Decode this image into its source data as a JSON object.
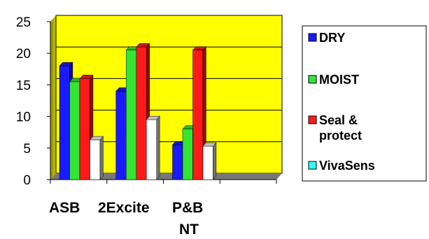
{
  "chart_data": {
    "type": "bar",
    "categories": [
      "ASB",
      "2Excite",
      "P&B NT",
      ""
    ],
    "category_lines": [
      [
        "ASB"
      ],
      [
        "2Excite"
      ],
      [
        "P&B",
        "NT"
      ],
      []
    ],
    "series": [
      {
        "name": "DRY",
        "legend_lines": [
          "DRY"
        ],
        "color": "#1a1aff",
        "values": [
          18,
          14,
          5.5,
          null
        ]
      },
      {
        "name": "MOIST",
        "legend_lines": [
          "MOIST"
        ],
        "color": "#33e633",
        "values": [
          15.5,
          20.5,
          8,
          null
        ]
      },
      {
        "name": "Seal & protect",
        "legend_lines": [
          "Seal &",
          "protect"
        ],
        "color": "#ff1a1a",
        "values": [
          16,
          21,
          20.5,
          null
        ]
      },
      {
        "name": "VivaSens",
        "legend_lines": [
          "VivaSens"
        ],
        "color": "#ffffff",
        "legend_color": "#33ffff",
        "values": [
          6.3,
          9.5,
          5.3,
          null
        ]
      }
    ],
    "yticks": [
      0,
      5,
      10,
      15,
      20,
      25
    ],
    "ylim": [
      0,
      25
    ],
    "grid": true,
    "background_color": "#ffff00",
    "legend_position": "right",
    "title": "",
    "xlabel": "",
    "ylabel": ""
  }
}
